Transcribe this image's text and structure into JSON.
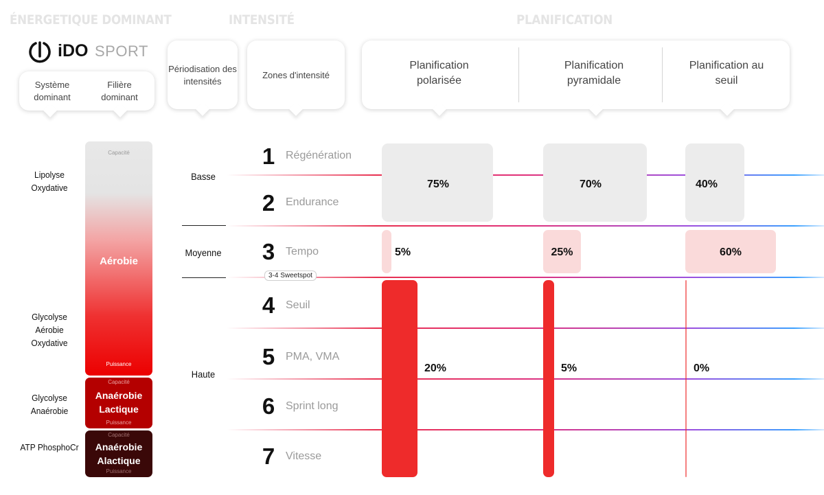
{
  "headers": {
    "energetique": "ÉNERGETIQUE DOMINANT",
    "intensite": "INTENSITÉ",
    "planification": "PLANIFICATION"
  },
  "logo": {
    "brand": "iDO",
    "sport": "SPORT"
  },
  "columns": {
    "systeme": "Système dominant",
    "filiere": "Filière dominant",
    "periodisation": "Périodisation des intensités",
    "zones": "Zones d'intensité",
    "polarisee": "Planification polarisée",
    "pyramidale": "Planification pyramidale",
    "seuil": "Planification au seuil"
  },
  "systems": [
    {
      "label": "Lipolyse Oxydative"
    },
    {
      "label": "Glycolyse Aérobie Oxydative"
    },
    {
      "label": "Glycolyse Anaérobie"
    },
    {
      "label": "ATP PhosphoCr"
    }
  ],
  "filieres": [
    {
      "name": "Aérobie",
      "top": "Capacité",
      "bottom": "Puissance"
    },
    {
      "name": "Anaérobie Lactique",
      "top": "Capacité",
      "bottom": "Puissance"
    },
    {
      "name": "Anaérobie Alactique",
      "top": "Capacité",
      "bottom": "Puissance"
    }
  ],
  "levels": {
    "basse": "Basse",
    "moyenne": "Moyenne",
    "haute": "Haute"
  },
  "zones": [
    {
      "num": "1",
      "name": "Régénération"
    },
    {
      "num": "2",
      "name": "Endurance"
    },
    {
      "num": "3",
      "name": "Tempo"
    },
    {
      "num": "4",
      "name": "Seuil"
    },
    {
      "num": "5",
      "name": "PMA, VMA"
    },
    {
      "num": "6",
      "name": "Sprint long"
    },
    {
      "num": "7",
      "name": "Vitesse"
    }
  ],
  "sweetspot": "3-4 Sweetspot",
  "plans": [
    {
      "name": "polarisée",
      "low": "75%",
      "low_value": 75,
      "mid": "5%",
      "mid_value": 5,
      "high": "20%",
      "high_value": 20
    },
    {
      "name": "pyramidale",
      "low": "70%",
      "low_value": 70,
      "mid": "25%",
      "mid_value": 25,
      "high": "5%",
      "high_value": 5
    },
    {
      "name": "au seuil",
      "low": "40%",
      "low_value": 40,
      "mid": "60%",
      "mid_value": 60,
      "high": "0%",
      "high_value": 0
    }
  ],
  "colors": {
    "low": "#ececec",
    "mid": "#fadada",
    "high": "#ee2b2b",
    "header": "#e4e4e4"
  }
}
